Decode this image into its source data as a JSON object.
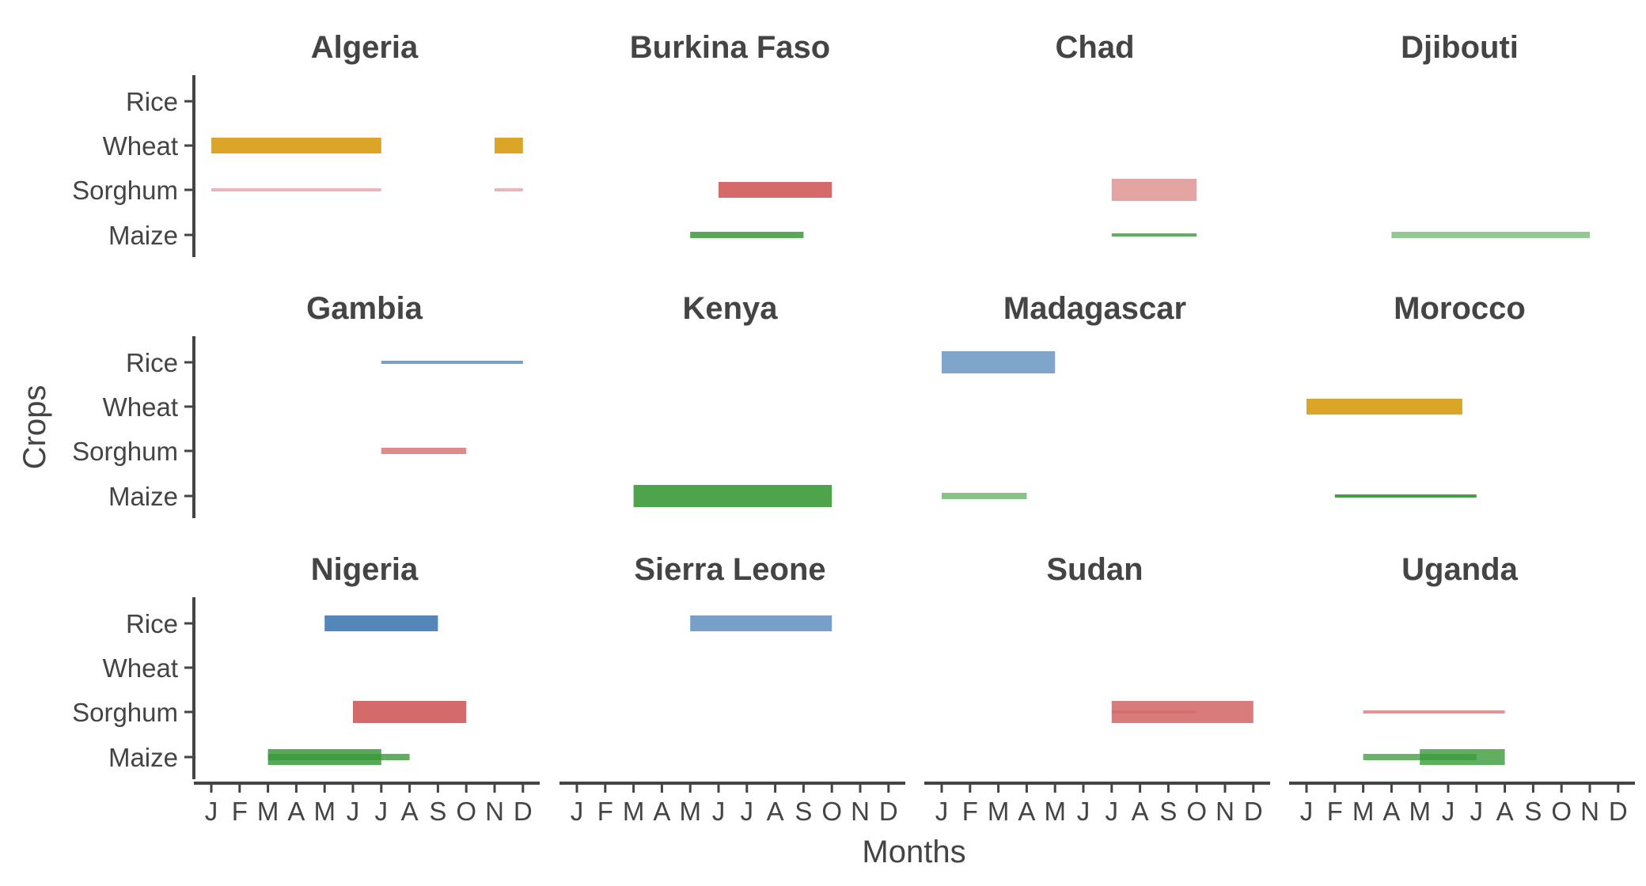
{
  "chart_data": {
    "type": "range-bar (faceted crop calendar)",
    "xlabel": "Months",
    "ylabel": "Crops",
    "months": [
      "J",
      "F",
      "M",
      "A",
      "M",
      "J",
      "J",
      "A",
      "S",
      "O",
      "N",
      "D"
    ],
    "crops": [
      "Rice",
      "Wheat",
      "Sorghum",
      "Maize"
    ],
    "colors": {
      "Rice": "#4a7fb5",
      "Wheat": "#d9a01c",
      "Sorghum": "#d05a5a",
      "Maize": "#3a9a3a"
    },
    "panels": [
      {
        "country": "Algeria",
        "bars": [
          {
            "crop": "Wheat",
            "start": 1,
            "end": 7,
            "weight": "thick",
            "opacity": 0.95
          },
          {
            "crop": "Wheat",
            "start": 11,
            "end": 12,
            "weight": "thick",
            "opacity": 0.95
          },
          {
            "crop": "Sorghum",
            "start": 1,
            "end": 7,
            "weight": "thin",
            "opacity": 0.45
          },
          {
            "crop": "Sorghum",
            "start": 11,
            "end": 12,
            "weight": "thin",
            "opacity": 0.45
          }
        ]
      },
      {
        "country": "Burkina Faso",
        "bars": [
          {
            "crop": "Sorghum",
            "start": 6,
            "end": 10,
            "weight": "thick",
            "opacity": 0.9
          },
          {
            "crop": "Maize",
            "start": 5,
            "end": 9,
            "weight": "medium",
            "opacity": 0.85
          }
        ]
      },
      {
        "country": "Chad",
        "bars": [
          {
            "crop": "Sorghum",
            "start": 7,
            "end": 10,
            "weight": "heavy",
            "opacity": 0.55
          },
          {
            "crop": "Maize",
            "start": 7,
            "end": 10,
            "weight": "thin",
            "opacity": 0.8
          }
        ]
      },
      {
        "country": "Djibouti",
        "bars": [
          {
            "crop": "Maize",
            "start": 4,
            "end": 11,
            "weight": "medium",
            "opacity": 0.55
          }
        ]
      },
      {
        "country": "Gambia",
        "bars": [
          {
            "crop": "Rice",
            "start": 7,
            "end": 12,
            "weight": "thin",
            "opacity": 0.75
          },
          {
            "crop": "Sorghum",
            "start": 7,
            "end": 10,
            "weight": "medium",
            "opacity": 0.7
          }
        ]
      },
      {
        "country": "Kenya",
        "bars": [
          {
            "crop": "Maize",
            "start": 3,
            "end": 10,
            "weight": "heavy",
            "opacity": 0.9
          }
        ]
      },
      {
        "country": "Madagascar",
        "bars": [
          {
            "crop": "Rice",
            "start": 1,
            "end": 5,
            "weight": "heavy",
            "opacity": 0.7
          },
          {
            "crop": "Maize",
            "start": 1,
            "end": 4,
            "weight": "medium",
            "opacity": 0.6
          }
        ]
      },
      {
        "country": "Morocco",
        "bars": [
          {
            "crop": "Wheat",
            "start": 1,
            "end": 6.5,
            "weight": "thick",
            "opacity": 0.95
          },
          {
            "crop": "Maize",
            "start": 2,
            "end": 7,
            "weight": "thin",
            "opacity": 0.95
          }
        ]
      },
      {
        "country": "Nigeria",
        "bars": [
          {
            "crop": "Rice",
            "start": 5,
            "end": 9,
            "weight": "thick",
            "opacity": 0.95
          },
          {
            "crop": "Sorghum",
            "start": 6,
            "end": 10,
            "weight": "heavy",
            "opacity": 0.9
          },
          {
            "crop": "Maize",
            "start": 3,
            "end": 8,
            "weight": "medium",
            "opacity": 0.8
          },
          {
            "crop": "Maize",
            "start": 3,
            "end": 7,
            "weight": "thick",
            "opacity": 0.85
          }
        ]
      },
      {
        "country": "Sierra Leone",
        "bars": [
          {
            "crop": "Rice",
            "start": 5,
            "end": 10,
            "weight": "thick",
            "opacity": 0.75
          }
        ]
      },
      {
        "country": "Sudan",
        "bars": [
          {
            "crop": "Sorghum",
            "start": 7,
            "end": 12,
            "weight": "heavy",
            "opacity": 0.8
          },
          {
            "crop": "Sorghum",
            "start": 7,
            "end": 10,
            "weight": "thin",
            "opacity": 0.4
          }
        ]
      },
      {
        "country": "Uganda",
        "bars": [
          {
            "crop": "Sorghum",
            "start": 3,
            "end": 8,
            "weight": "thin",
            "opacity": 0.65
          },
          {
            "crop": "Maize",
            "start": 3,
            "end": 7,
            "weight": "medium",
            "opacity": 0.75
          },
          {
            "crop": "Maize",
            "start": 5,
            "end": 8,
            "weight": "thick",
            "opacity": 0.8
          }
        ]
      }
    ]
  }
}
